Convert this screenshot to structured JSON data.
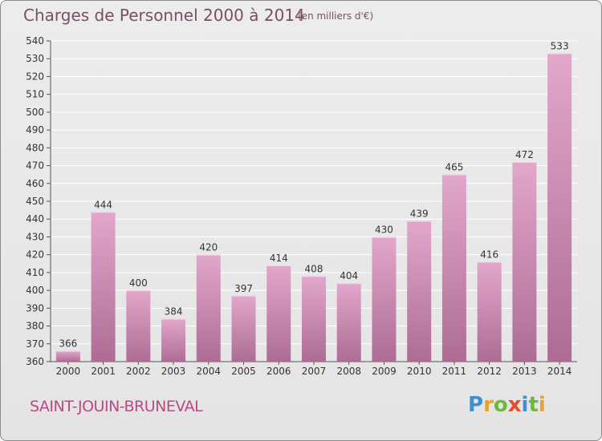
{
  "title": "Charges de Personnel 2000 à 2014",
  "subtitle": "(en milliers d'€)",
  "commune": "SAINT-JOUIN-BRUNEVAL",
  "logo": {
    "letters": [
      "P",
      "r",
      "o",
      "x",
      "i",
      "t",
      "i"
    ],
    "colors": [
      "#3b8fd6",
      "#e8a32a",
      "#6fb83b",
      "#e84a2a",
      "#3b8fd6",
      "#6fb83b",
      "#e8a32a"
    ]
  },
  "colors": {
    "bar_top": "#e3a7cb",
    "bar_bottom": "#ad6c94",
    "grid": "#ffffff",
    "axis_text": "#333333"
  },
  "chart_data": {
    "type": "bar",
    "categories": [
      "2000",
      "2001",
      "2002",
      "2003",
      "2004",
      "2005",
      "2006",
      "2007",
      "2008",
      "2009",
      "2010",
      "2011",
      "2012",
      "2013",
      "2014"
    ],
    "values": [
      366,
      444,
      400,
      384,
      420,
      397,
      414,
      408,
      404,
      430,
      439,
      465,
      416,
      472,
      533
    ],
    "ylim": [
      360,
      540
    ],
    "yticks": [
      360,
      370,
      380,
      390,
      400,
      410,
      420,
      430,
      440,
      450,
      460,
      470,
      480,
      490,
      500,
      510,
      520,
      530,
      540
    ],
    "grid": true,
    "title": "Charges de Personnel 2000 à 2014",
    "xlabel": "",
    "ylabel": ""
  }
}
